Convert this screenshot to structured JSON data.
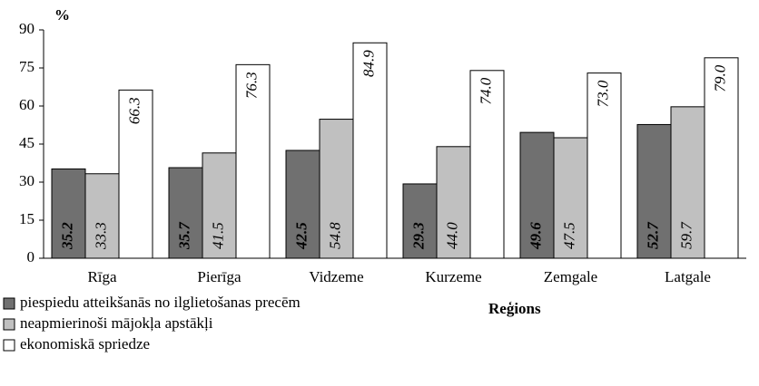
{
  "chart_data": {
    "type": "bar",
    "y_label": "%",
    "x_label": "Reģions",
    "categories": [
      "Rīga",
      "Pierīga",
      "Vidzeme",
      "Kurzeme",
      "Zemgale",
      "Latgale"
    ],
    "series": [
      {
        "name": "piespiedu atteikšanās no ilglietošanas precēm",
        "color": "#707070",
        "values": [
          35.2,
          35.7,
          42.5,
          29.3,
          49.6,
          52.7
        ],
        "value_labels": [
          "35.2",
          "35.7",
          "42.5",
          "29.3",
          "49.6",
          "52.7"
        ]
      },
      {
        "name": "neapmierinoši mājokļa apstākļi",
        "color": "#c0c0c0",
        "values": [
          33.3,
          41.5,
          54.8,
          44,
          47.5,
          59.7
        ],
        "value_labels": [
          "33.3",
          "41.5",
          "54.8",
          "44.0",
          "47.5",
          "59.7"
        ]
      },
      {
        "name": "ekonomiskā spriedze",
        "color": "#ffffff",
        "values": [
          66.3,
          76.3,
          84.9,
          74,
          73,
          79
        ],
        "value_labels": [
          "66.3",
          "76.3",
          "84.9",
          "74.0",
          "73.0",
          "79.0"
        ]
      }
    ],
    "ylim": [
      0,
      90
    ],
    "yticks": [
      0,
      15,
      30,
      45,
      60,
      75,
      90
    ]
  }
}
